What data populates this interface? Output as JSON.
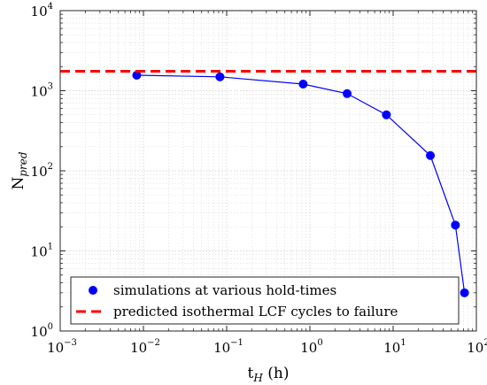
{
  "chart_data": {
    "type": "line",
    "title": "",
    "xlabel": {
      "main": "t",
      "sub": "H",
      "unit": " (h)"
    },
    "ylabel": {
      "main": "N",
      "sub": "pred"
    },
    "x_scale": "log",
    "y_scale": "log",
    "xlim": [
      0.001,
      100
    ],
    "ylim": [
      1,
      10000
    ],
    "x_ticks": [
      {
        "value": 0.001,
        "base": "10",
        "exp": "−3"
      },
      {
        "value": 0.01,
        "base": "10",
        "exp": "−2"
      },
      {
        "value": 0.1,
        "base": "10",
        "exp": "−1"
      },
      {
        "value": 1,
        "base": "10",
        "exp": "0"
      },
      {
        "value": 10,
        "base": "10",
        "exp": "1"
      },
      {
        "value": 100,
        "base": "10",
        "exp": "2"
      }
    ],
    "y_ticks": [
      {
        "value": 1,
        "base": "10",
        "exp": "0"
      },
      {
        "value": 10,
        "base": "10",
        "exp": "1"
      },
      {
        "value": 100,
        "base": "10",
        "exp": "2"
      },
      {
        "value": 1000,
        "base": "10",
        "exp": "3"
      },
      {
        "value": 10000,
        "base": "10",
        "exp": "4"
      }
    ],
    "grid": true,
    "minor_grid": true,
    "legend_position": "bottom-right",
    "series": [
      {
        "name": "simulations at various hold-times",
        "kind": "line-marker",
        "color": "#0000ff",
        "x": [
          0.0083,
          0.083,
          0.83,
          2.8,
          8.3,
          28,
          56,
          72
        ],
        "y": [
          1560,
          1490,
          1210,
          920,
          500,
          155,
          21,
          3
        ]
      },
      {
        "name": "predicted isothermal LCF cycles to failure",
        "kind": "dashed-hline",
        "color": "#ff0000",
        "y": 1750
      }
    ]
  }
}
